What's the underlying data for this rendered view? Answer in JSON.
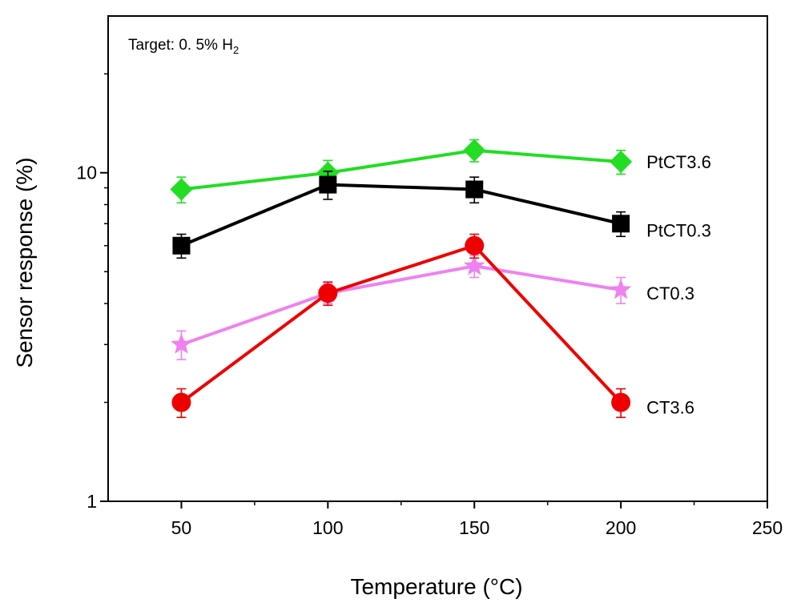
{
  "chart_data": {
    "type": "line",
    "title": "",
    "annotation": {
      "text": "Target: 0. 5% H",
      "subscript": "2"
    },
    "xlabel": "Temperature (°C)",
    "ylabel": "Sensor response (%)",
    "xlim": [
      25,
      250
    ],
    "ylim": [
      1,
      30
    ],
    "yscale": "log",
    "x_ticks": [
      50,
      100,
      150,
      200,
      250
    ],
    "x_tick_labels": [
      "50",
      "100",
      "150",
      "200",
      "250"
    ],
    "y_ticks": [
      1,
      10
    ],
    "y_tick_labels": [
      "1",
      "10"
    ],
    "x": [
      50,
      100,
      150,
      200
    ],
    "series": [
      {
        "name": "PtCT3.6",
        "marker": "diamond",
        "color": "#22dd22",
        "values": [
          8.9,
          10.0,
          11.7,
          10.8
        ],
        "errors": [
          0.8,
          0.9,
          0.9,
          0.9
        ]
      },
      {
        "name": "PtCT0.3",
        "marker": "square",
        "color": "#000000",
        "values": [
          6.0,
          9.2,
          8.9,
          7.0
        ],
        "errors": [
          0.5,
          0.9,
          0.8,
          0.6
        ]
      },
      {
        "name": "CT0.3",
        "marker": "star",
        "color": "#ee82ee",
        "values": [
          3.0,
          4.3,
          5.2,
          4.4
        ],
        "errors": [
          0.3,
          0.3,
          0.4,
          0.4
        ]
      },
      {
        "name": "CT3.6",
        "marker": "circle",
        "color": "#ee0000",
        "values": [
          2.0,
          4.3,
          6.0,
          2.0
        ],
        "errors": [
          0.2,
          0.35,
          0.5,
          0.2
        ]
      }
    ]
  }
}
